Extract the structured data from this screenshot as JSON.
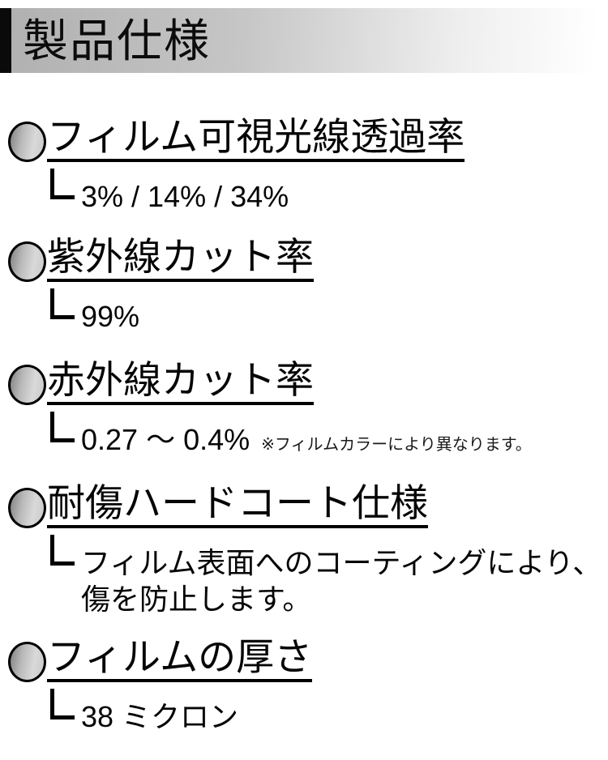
{
  "header": {
    "title": "製品仕様"
  },
  "sections": [
    {
      "title": "フィルム可視光線透過率",
      "value": "3% / 14% / 34%"
    },
    {
      "title": "紫外線カット率",
      "value": "99%"
    },
    {
      "title": "赤外線カット率",
      "value": "0.27 〜 0.4%",
      "note": "※フィルムカラーにより異なります。"
    },
    {
      "title": "耐傷ハードコート仕様",
      "value_line1": "フィルム表面へのコーティングにより、",
      "value_line2": "傷を防止します。"
    },
    {
      "title": "フィルムの厚さ",
      "value": "38 ミクロン"
    }
  ],
  "colors": {
    "text": "#050505",
    "header_bar": "#0a0a0a",
    "header_gradient_start": "#b0b0b0",
    "header_gradient_end": "#ffffff",
    "bullet_gradient_dark": "#8d8d8d",
    "bullet_gradient_light": "#d9d9d9",
    "background": "#ffffff"
  }
}
